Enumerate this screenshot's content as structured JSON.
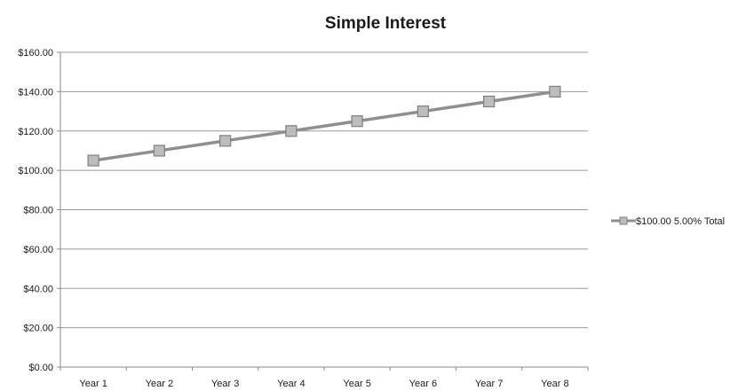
{
  "chart_data": {
    "type": "line",
    "title": "Simple Interest",
    "xlabel": "",
    "ylabel": "",
    "categories": [
      "Year 1",
      "Year 2",
      "Year 3",
      "Year 4",
      "Year 5",
      "Year 6",
      "Year 7",
      "Year 8"
    ],
    "series": [
      {
        "name": "$100.00 5.00% Total",
        "values": [
          105,
          110,
          115,
          120,
          125,
          130,
          135,
          140
        ],
        "color": "#8f8f8f",
        "marker": "square",
        "marker_color": "#bdbdbd"
      }
    ],
    "ylim": [
      0,
      160
    ],
    "y_ticks": [
      0,
      20,
      40,
      60,
      80,
      100,
      120,
      140,
      160
    ],
    "y_tick_labels": [
      "$0.00",
      "$20.00",
      "$40.00",
      "$60.00",
      "$80.00",
      "$100.00",
      "$120.00",
      "$140.00",
      "$160.00"
    ],
    "grid": true,
    "legend_position": "right"
  }
}
